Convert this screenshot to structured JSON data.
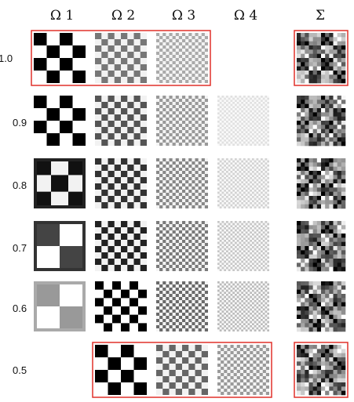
{
  "columns": [
    {
      "label": "Ω 1"
    },
    {
      "label": "Ω 2"
    },
    {
      "label": "Ω 3"
    },
    {
      "label": "Ω 4"
    },
    {
      "label": "Σ"
    }
  ],
  "rows": [
    {
      "label": "1.0"
    },
    {
      "label": "0.9"
    },
    {
      "label": "0.8"
    },
    {
      "label": "0.7"
    },
    {
      "label": "0.6"
    },
    {
      "label": "0.5"
    }
  ],
  "highlight_color": "#e0302a",
  "highlights": [
    {
      "row": "1.0",
      "columns": [
        "Ω 1",
        "Ω 2",
        "Ω 3"
      ]
    },
    {
      "row": "1.0",
      "columns": [
        "Σ"
      ]
    },
    {
      "row": "0.5",
      "columns": [
        "Ω 2",
        "Ω 3",
        "Ω 4"
      ]
    },
    {
      "row": "0.5",
      "columns": [
        "Σ"
      ]
    }
  ]
}
